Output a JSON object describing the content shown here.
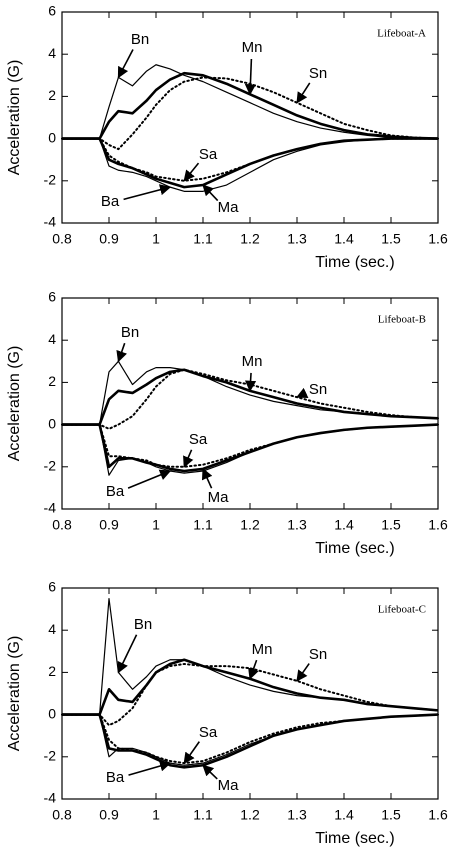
{
  "chart_data": [
    {
      "type": "line",
      "title": "Lifeboat-A",
      "x_label": "Time (sec.)",
      "y_label": "Acceleration (G)",
      "x": [
        0.8,
        0.85,
        0.88,
        0.9,
        0.92,
        0.95,
        0.98,
        1.0,
        1.03,
        1.06,
        1.1,
        1.15,
        1.2,
        1.25,
        1.3,
        1.35,
        1.4,
        1.45,
        1.5,
        1.55,
        1.6
      ],
      "xlim": [
        0.8,
        1.6
      ],
      "ylim": [
        -4,
        6
      ],
      "xticks": [
        0.8,
        0.9,
        1,
        1.1,
        1.2,
        1.3,
        1.4,
        1.5,
        1.6
      ],
      "yticks": [
        -4,
        -2,
        0,
        2,
        4,
        6
      ],
      "series": [
        {
          "name": "Bn",
          "color": "#000000",
          "linestyle": "solid",
          "linewidth": 1.2,
          "values": [
            0,
            0,
            0,
            1.5,
            2.9,
            2.5,
            3.2,
            3.5,
            3.3,
            3.0,
            2.7,
            2.2,
            1.7,
            1.2,
            0.8,
            0.5,
            0.3,
            0.15,
            0.05,
            0,
            0
          ]
        },
        {
          "name": "Mn",
          "color": "#000000",
          "linestyle": "solid",
          "linewidth": 2.6,
          "values": [
            0,
            0,
            0,
            0.8,
            1.3,
            1.2,
            1.8,
            2.3,
            2.8,
            3.1,
            3.0,
            2.6,
            2.1,
            1.6,
            1.1,
            0.7,
            0.4,
            0.2,
            0.1,
            0.03,
            0
          ]
        },
        {
          "name": "Sn",
          "color": "#000000",
          "linestyle": "dotted",
          "linewidth": 2,
          "values": [
            0,
            0,
            0,
            -0.3,
            -0.5,
            0.2,
            1.0,
            1.6,
            2.3,
            2.7,
            2.9,
            2.85,
            2.6,
            2.2,
            1.7,
            1.2,
            0.7,
            0.4,
            0.15,
            0.05,
            0
          ]
        },
        {
          "name": "Ba",
          "color": "#000000",
          "linestyle": "solid",
          "linewidth": 1.2,
          "values": [
            0,
            0,
            0,
            -1.3,
            -1.5,
            -1.6,
            -1.8,
            -2.0,
            -2.3,
            -2.5,
            -2.5,
            -2.2,
            -1.6,
            -1.0,
            -0.6,
            -0.3,
            -0.15,
            -0.05,
            0,
            0,
            0
          ]
        },
        {
          "name": "Ma",
          "color": "#000000",
          "linestyle": "solid",
          "linewidth": 2.6,
          "values": [
            0,
            0,
            0,
            -1.0,
            -1.2,
            -1.4,
            -1.7,
            -1.9,
            -2.1,
            -2.3,
            -2.2,
            -1.7,
            -1.2,
            -0.8,
            -0.5,
            -0.25,
            -0.1,
            -0.05,
            0,
            0,
            0
          ]
        },
        {
          "name": "Sa",
          "color": "#000000",
          "linestyle": "dotted",
          "linewidth": 2,
          "values": [
            0,
            0,
            0,
            -0.8,
            -1.1,
            -1.4,
            -1.6,
            -1.8,
            -1.9,
            -2.0,
            -1.9,
            -1.6,
            -1.2,
            -0.8,
            -0.5,
            -0.25,
            -0.1,
            -0.05,
            0,
            0,
            0
          ]
        }
      ]
    },
    {
      "type": "line",
      "title": "Lifeboat-B",
      "x_label": "Time (sec.)",
      "y_label": "Acceleration (G)",
      "x": [
        0.8,
        0.85,
        0.88,
        0.9,
        0.92,
        0.95,
        0.98,
        1.0,
        1.03,
        1.06,
        1.1,
        1.15,
        1.2,
        1.25,
        1.3,
        1.35,
        1.4,
        1.45,
        1.5,
        1.55,
        1.6
      ],
      "xlim": [
        0.8,
        1.6
      ],
      "ylim": [
        -4,
        6
      ],
      "xticks": [
        0.8,
        0.9,
        1,
        1.1,
        1.2,
        1.3,
        1.4,
        1.5,
        1.6
      ],
      "yticks": [
        -4,
        -2,
        0,
        2,
        4,
        6
      ],
      "series": [
        {
          "name": "Bn",
          "color": "#000000",
          "linestyle": "solid",
          "linewidth": 1.2,
          "values": [
            0,
            0,
            0,
            2.5,
            3.0,
            1.9,
            2.5,
            2.7,
            2.7,
            2.6,
            2.3,
            1.8,
            1.4,
            1.1,
            0.9,
            0.7,
            0.6,
            0.5,
            0.4,
            0.35,
            0.3
          ]
        },
        {
          "name": "Mn",
          "color": "#000000",
          "linestyle": "solid",
          "linewidth": 2.6,
          "values": [
            0,
            0,
            0,
            1.2,
            1.6,
            1.5,
            1.9,
            2.2,
            2.5,
            2.6,
            2.3,
            2.0,
            1.6,
            1.3,
            1.0,
            0.8,
            0.6,
            0.5,
            0.4,
            0.35,
            0.3
          ]
        },
        {
          "name": "Sn",
          "color": "#000000",
          "linestyle": "dotted",
          "linewidth": 2,
          "values": [
            0,
            0,
            0,
            -0.2,
            0.0,
            0.4,
            1.2,
            1.8,
            2.4,
            2.6,
            2.4,
            2.1,
            1.9,
            1.6,
            1.3,
            1.0,
            0.8,
            0.6,
            0.45,
            0.35,
            0.3
          ]
        },
        {
          "name": "Ba",
          "color": "#000000",
          "linestyle": "solid",
          "linewidth": 1.2,
          "values": [
            0,
            0,
            0,
            -2.4,
            -1.7,
            -1.6,
            -1.8,
            -2.0,
            -2.2,
            -2.3,
            -2.2,
            -1.8,
            -1.3,
            -0.9,
            -0.6,
            -0.4,
            -0.25,
            -0.15,
            -0.1,
            -0.05,
            0
          ]
        },
        {
          "name": "Ma",
          "color": "#000000",
          "linestyle": "solid",
          "linewidth": 2.6,
          "values": [
            0,
            0,
            0,
            -2.0,
            -1.6,
            -1.6,
            -1.8,
            -1.9,
            -2.1,
            -2.2,
            -2.1,
            -1.7,
            -1.3,
            -0.9,
            -0.6,
            -0.4,
            -0.25,
            -0.15,
            -0.1,
            -0.05,
            0
          ]
        },
        {
          "name": "Sa",
          "color": "#000000",
          "linestyle": "dotted",
          "linewidth": 2,
          "values": [
            0,
            0,
            0,
            -1.5,
            -1.5,
            -1.6,
            -1.7,
            -1.9,
            -2.0,
            -2.0,
            -1.9,
            -1.6,
            -1.2,
            -0.9,
            -0.6,
            -0.4,
            -0.25,
            -0.15,
            -0.1,
            -0.05,
            0
          ]
        }
      ]
    },
    {
      "type": "line",
      "title": "Lifeboat-C",
      "x_label": "Time (sec.)",
      "y_label": "Acceleration (G)",
      "x": [
        0.8,
        0.85,
        0.88,
        0.9,
        0.92,
        0.95,
        0.98,
        1.0,
        1.03,
        1.06,
        1.1,
        1.15,
        1.2,
        1.25,
        1.3,
        1.35,
        1.4,
        1.45,
        1.5,
        1.55,
        1.6
      ],
      "xlim": [
        0.8,
        1.6
      ],
      "ylim": [
        -4,
        6
      ],
      "xticks": [
        0.8,
        0.9,
        1,
        1.1,
        1.2,
        1.3,
        1.4,
        1.5,
        1.6
      ],
      "yticks": [
        -4,
        -2,
        0,
        2,
        4,
        6
      ],
      "series": [
        {
          "name": "Bn",
          "color": "#000000",
          "linestyle": "solid",
          "linewidth": 1.2,
          "values": [
            0,
            0,
            0,
            5.5,
            2.0,
            1.2,
            1.8,
            2.3,
            2.6,
            2.6,
            2.3,
            1.8,
            1.4,
            1.1,
            0.9,
            0.8,
            0.7,
            0.5,
            0.4,
            0.3,
            0.2
          ]
        },
        {
          "name": "Mn",
          "color": "#000000",
          "linestyle": "solid",
          "linewidth": 2.6,
          "values": [
            0,
            0,
            0,
            1.2,
            0.7,
            0.6,
            1.4,
            2.0,
            2.4,
            2.6,
            2.3,
            2.0,
            1.7,
            1.3,
            1.0,
            0.8,
            0.7,
            0.5,
            0.4,
            0.3,
            0.2
          ]
        },
        {
          "name": "Sn",
          "color": "#000000",
          "linestyle": "dotted",
          "linewidth": 2,
          "values": [
            0,
            0,
            0,
            -0.5,
            -0.3,
            0.3,
            1.4,
            2.0,
            2.3,
            2.4,
            2.3,
            2.3,
            2.2,
            1.9,
            1.6,
            1.2,
            0.9,
            0.6,
            0.4,
            0.3,
            0.2
          ]
        },
        {
          "name": "Ba",
          "color": "#000000",
          "linestyle": "solid",
          "linewidth": 1.2,
          "values": [
            0,
            0,
            0,
            -2.0,
            -1.6,
            -1.6,
            -1.8,
            -2.0,
            -2.3,
            -2.4,
            -2.3,
            -1.9,
            -1.4,
            -1.0,
            -0.7,
            -0.5,
            -0.3,
            -0.2,
            -0.1,
            -0.05,
            0
          ]
        },
        {
          "name": "Ma",
          "color": "#000000",
          "linestyle": "solid",
          "linewidth": 2.6,
          "values": [
            0,
            0,
            0,
            -1.6,
            -1.7,
            -1.7,
            -1.9,
            -2.1,
            -2.4,
            -2.5,
            -2.4,
            -2.0,
            -1.5,
            -1.0,
            -0.7,
            -0.5,
            -0.3,
            -0.2,
            -0.1,
            -0.05,
            0
          ]
        },
        {
          "name": "Sa",
          "color": "#000000",
          "linestyle": "dotted",
          "linewidth": 2,
          "values": [
            0,
            0,
            0,
            -1.2,
            -1.6,
            -1.7,
            -1.8,
            -2.0,
            -2.2,
            -2.3,
            -2.2,
            -1.8,
            -1.3,
            -0.9,
            -0.6,
            -0.4,
            -0.3,
            -0.2,
            -0.1,
            -0.05,
            0
          ]
        }
      ]
    }
  ]
}
